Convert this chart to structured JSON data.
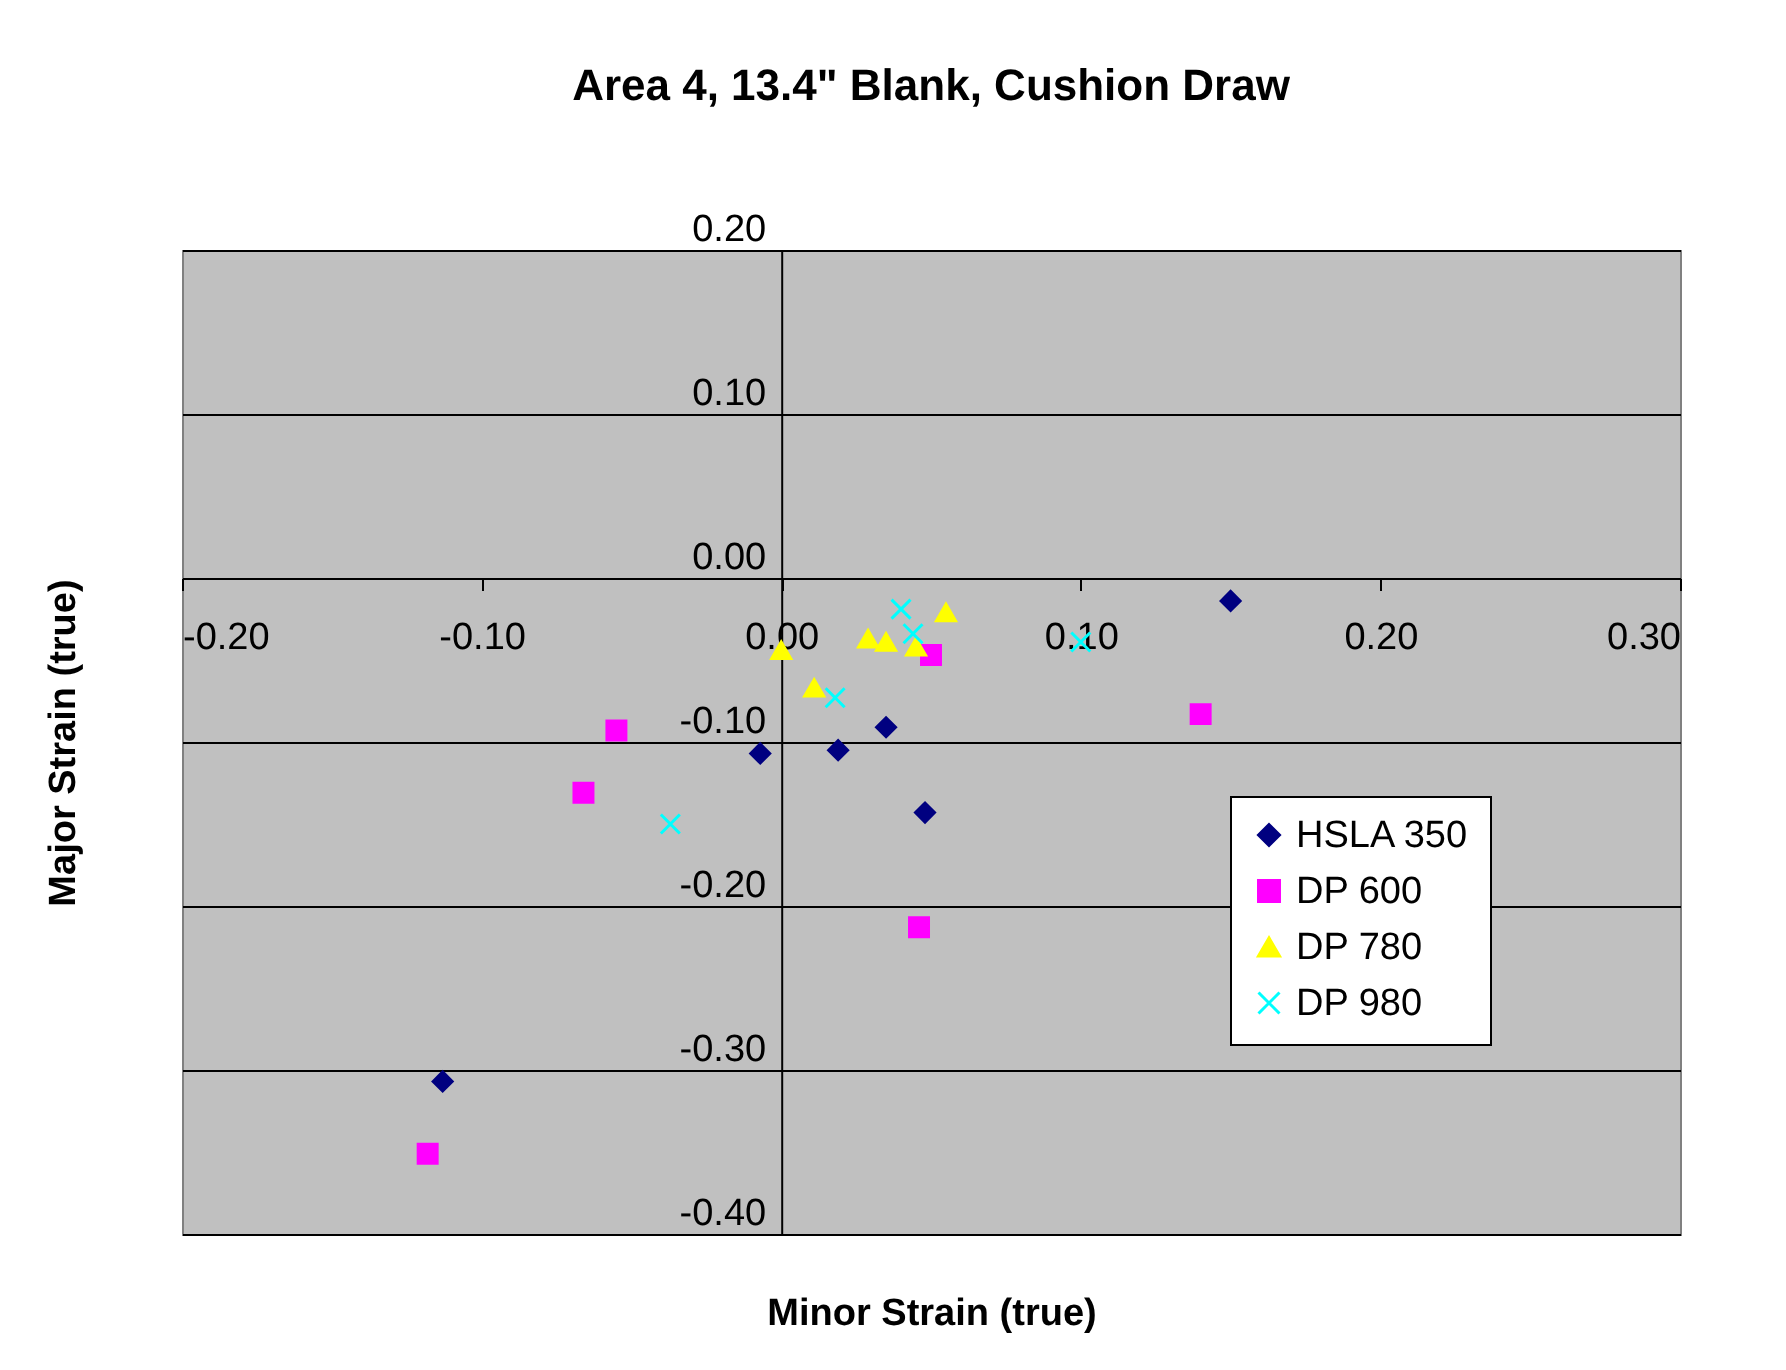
{
  "chart_data": {
    "type": "scatter",
    "title": "Area 4, 13.4\" Blank, Cushion Draw",
    "xlabel": "Minor Strain (true)",
    "ylabel": "Major Strain (true)",
    "xlim": [
      -0.2,
      0.3
    ],
    "xticks": [
      {
        "value": -0.2,
        "label": "-0.20"
      },
      {
        "value": -0.1,
        "label": "-0.10"
      },
      {
        "value": 0,
        "label": "0.00"
      },
      {
        "value": 0.1,
        "label": "0.10"
      },
      {
        "value": 0.2,
        "label": "0.20"
      },
      {
        "value": 0.3,
        "label": "0.30"
      }
    ],
    "ylim": [
      -0.4,
      0.2
    ],
    "yticks": [
      {
        "value": -0.4,
        "label": "-0.40"
      },
      {
        "value": -0.3,
        "label": "-0.30"
      },
      {
        "value": -0.2,
        "label": "-0.20"
      },
      {
        "value": -0.1,
        "label": "-0.10"
      },
      {
        "value": 0,
        "label": "0.00"
      },
      {
        "value": 0.1,
        "label": "0.10"
      },
      {
        "value": 0.2,
        "label": "0.20"
      }
    ],
    "grid": "y",
    "legend": "bottom right",
    "series": [
      {
        "name": "HSLA 350",
        "color": "#000080",
        "marker": "diamond",
        "x": [
          -0.113,
          -0.007,
          0.019,
          0.035,
          0.048,
          0.15
        ],
        "values": [
          -0.307,
          -0.107,
          -0.105,
          -0.091,
          -0.143,
          -0.014
        ]
      },
      {
        "name": "DP 600",
        "color": "#ff00ff",
        "marker": "square",
        "x": [
          -0.118,
          -0.066,
          -0.055,
          0.05,
          0.046,
          0.14
        ],
        "values": [
          -0.351,
          -0.131,
          -0.093,
          -0.047,
          -0.213,
          -0.083
        ]
      },
      {
        "name": "DP 780",
        "color": "#ffff00",
        "marker": "triangle",
        "x": [
          0.0,
          0.011,
          0.029,
          0.035,
          0.045,
          0.055
        ],
        "values": [
          -0.044,
          -0.067,
          -0.037,
          -0.039,
          -0.042,
          -0.021
        ]
      },
      {
        "name": "DP 980",
        "color": "#00ffff",
        "marker": "cross",
        "x": [
          -0.037,
          0.018,
          0.04,
          0.044,
          0.1
        ],
        "values": [
          -0.15,
          -0.073,
          -0.019,
          -0.034,
          -0.039
        ]
      }
    ]
  }
}
